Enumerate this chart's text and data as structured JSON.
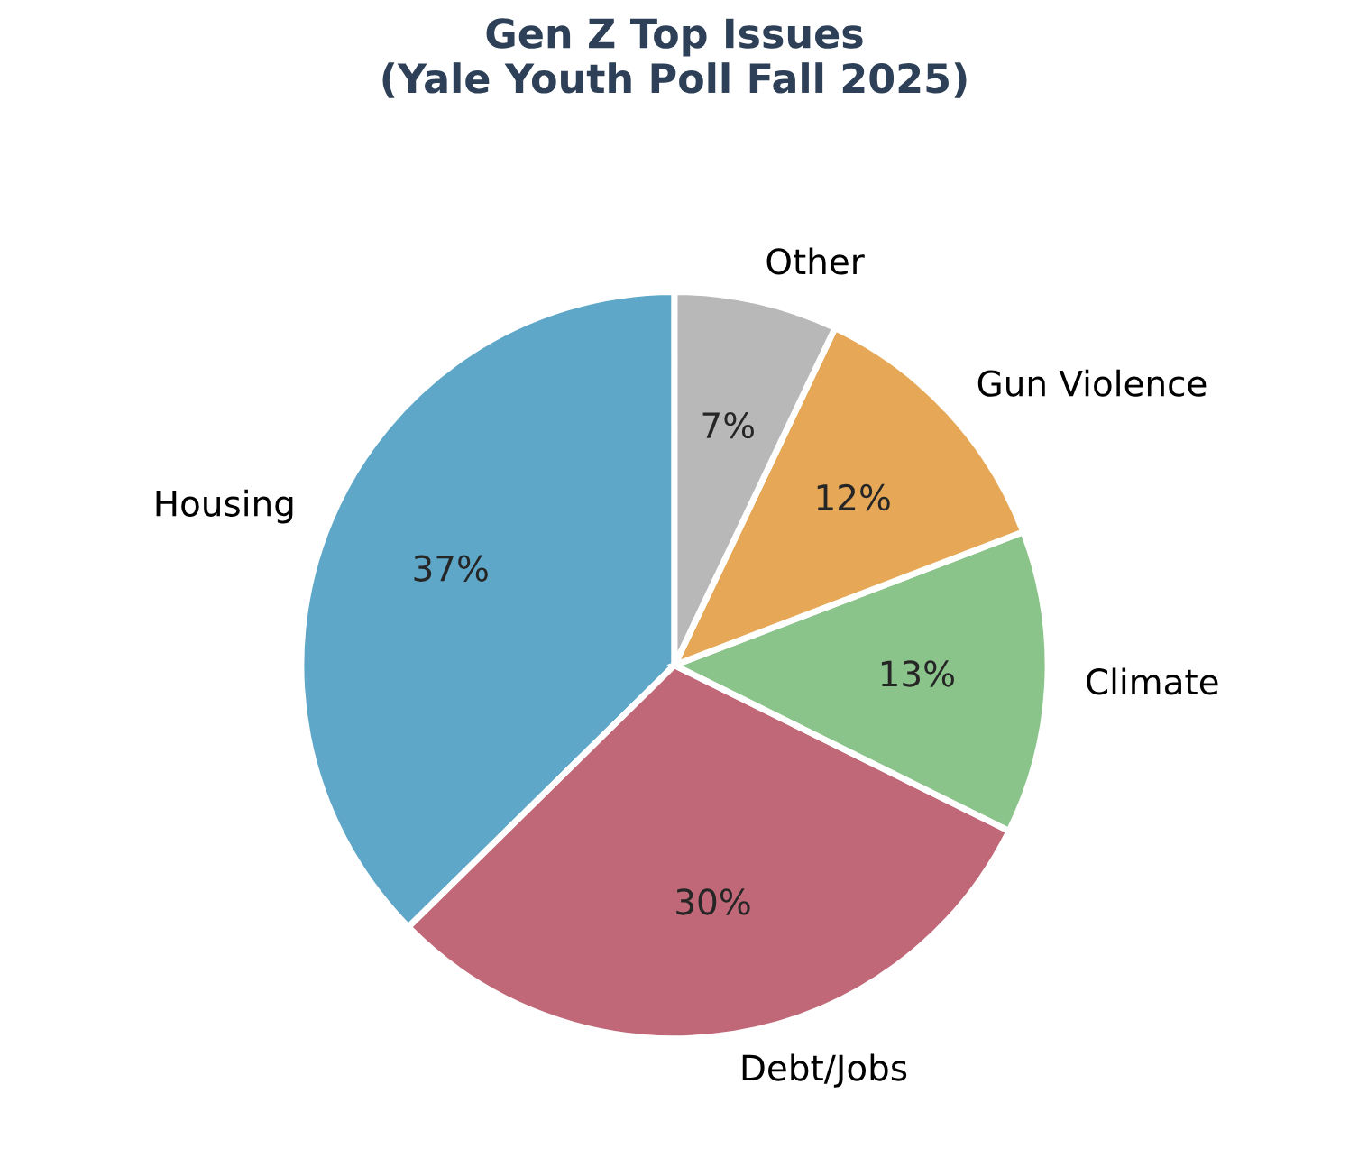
{
  "chart_data": {
    "type": "pie",
    "title": "Gen Z Top Issues\n(Yale Youth Poll Fall 2025)",
    "categories": [
      "Housing",
      "Debt/Jobs",
      "Climate",
      "Gun Violence",
      "Other"
    ],
    "values": [
      37,
      30,
      13,
      12,
      7
    ],
    "value_labels": [
      "37%",
      "30%",
      "13%",
      "12%",
      "7%"
    ],
    "colors": [
      "#5ea7c8",
      "#c06878",
      "#8bc48a",
      "#e6a857",
      "#b8b8b8"
    ]
  }
}
